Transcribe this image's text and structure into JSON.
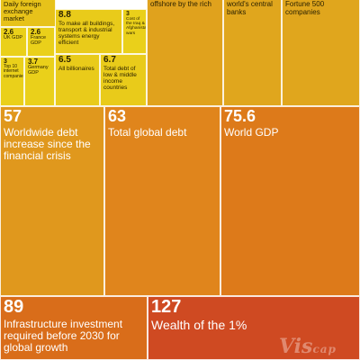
{
  "watermark": {
    "main": "Vis",
    "tail": "cap"
  },
  "chart_data": {
    "type": "treemap",
    "unit": "",
    "items": [
      {
        "label": "Daily foreign exchange market",
        "value": null,
        "color": "#e7c21a"
      },
      {
        "label": "UK GDP",
        "value": 2.6,
        "color": "#ead01a"
      },
      {
        "label": "France GDP",
        "value": 2.6,
        "color": "#ead01a"
      },
      {
        "label": "Top 10 internet companies",
        "value": 3,
        "color": "#ead01a"
      },
      {
        "label": "Germany GDP",
        "value": 3.7,
        "color": "#ead01a"
      },
      {
        "label": "To make all buildings, transport & industrial systems energy efficient",
        "value": 8.8,
        "color": "#e9cb1a"
      },
      {
        "label": "Cost of the Iraq & Afghanistan wars",
        "value": 3,
        "color": "#ead01a"
      },
      {
        "label": "All billionaires",
        "value": 6.5,
        "color": "#e9cb1a"
      },
      {
        "label": "Total debt of low & middle income countries",
        "value": 6.7,
        "color": "#e9cb1a"
      },
      {
        "label": "offshore by the rich",
        "value": null,
        "color": "#e0a21d"
      },
      {
        "label": "world's central banks",
        "value": null,
        "color": "#e0a61d"
      },
      {
        "label": "Fortune 500 companies",
        "value": null,
        "color": "#e0a61d"
      },
      {
        "label": "Worldwide debt increase since the financial crisis",
        "value": 57,
        "color": "#e0981d"
      },
      {
        "label": "Total global debt",
        "value": 63,
        "color": "#e0851c"
      },
      {
        "label": "World GDP",
        "value": 75.6,
        "color": "#dd7a1a"
      },
      {
        "label": "Infrastructure investment required before 2030 for global growth",
        "value": 89,
        "color": "#d96d1a"
      },
      {
        "label": "Wealth of the 1%",
        "value": 127,
        "color": "#cf4a22"
      }
    ]
  }
}
